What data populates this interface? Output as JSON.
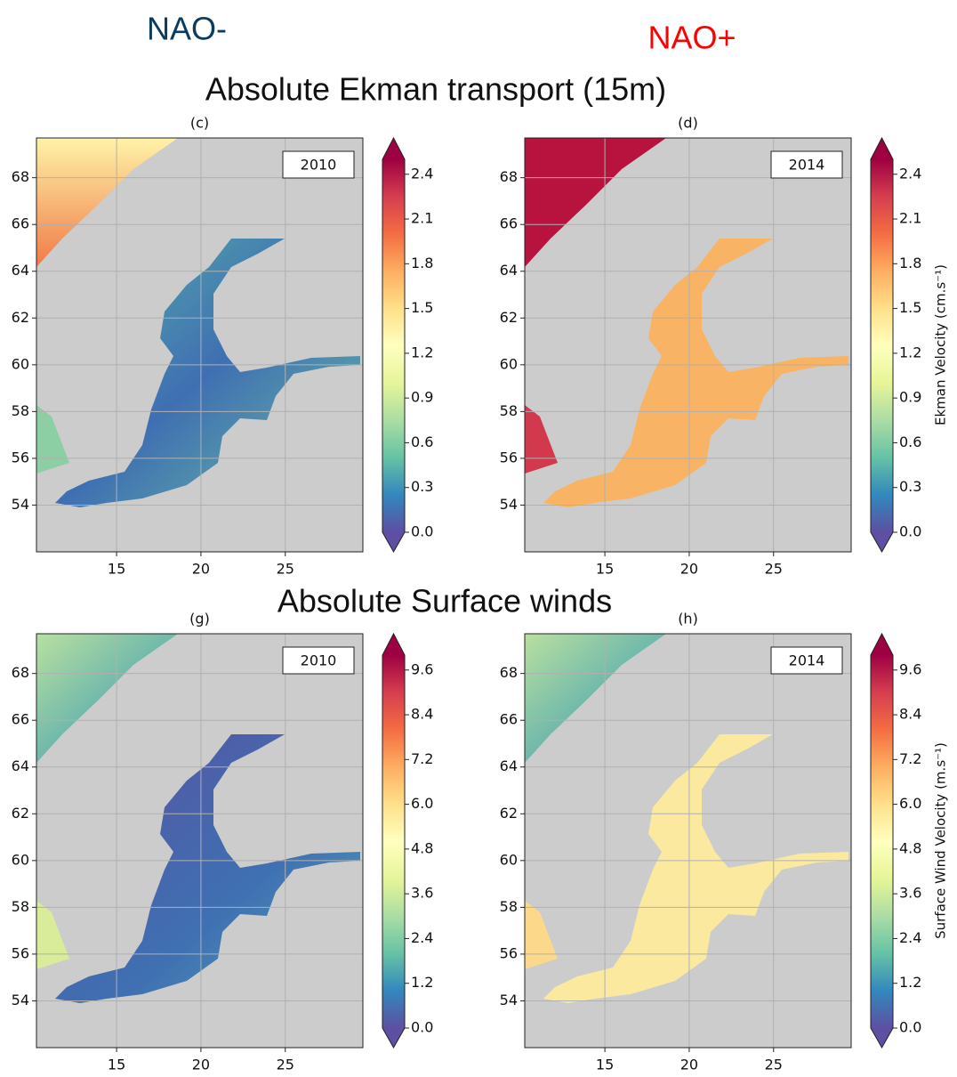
{
  "columns": [
    "NAO-",
    "NAO+"
  ],
  "xlim": [
    10.25,
    29.6
  ],
  "ylim": [
    52,
    69.7
  ],
  "xticks": [
    15,
    20,
    25
  ],
  "yticks": [
    54,
    56,
    58,
    60,
    62,
    64,
    66,
    68
  ],
  "rows": [
    {
      "title": "Absolute Ekman transport (15m)",
      "colorbar": {
        "label": "Ekman Velocity (cm.s⁻¹)",
        "lim": [
          0,
          2.5
        ],
        "ticks": [
          {
            "value": 0,
            "label": "0.0"
          },
          0.3,
          0.6,
          0.9,
          1.2,
          1.5,
          1.8,
          2.1,
          2.4
        ]
      },
      "panels": [
        {
          "label": "(c)",
          "year": "2010"
        },
        {
          "label": "(d)",
          "year": "2014"
        }
      ]
    },
    {
      "title": "Absolute  Surface winds",
      "colorbar": {
        "label": "Surface Wind Velocity (m.s⁻¹)",
        "lim": [
          0,
          10
        ],
        "ticks": [
          {
            "value": 0,
            "label": "0.0"
          },
          1.2,
          2.4,
          3.6,
          4.8,
          {
            "value": 6,
            "label": "6.0"
          },
          7.2,
          8.4,
          9.6
        ]
      },
      "panels": [
        {
          "label": "(g)",
          "year": "2010"
        },
        {
          "label": "(h)",
          "year": "2014"
        }
      ]
    }
  ]
}
